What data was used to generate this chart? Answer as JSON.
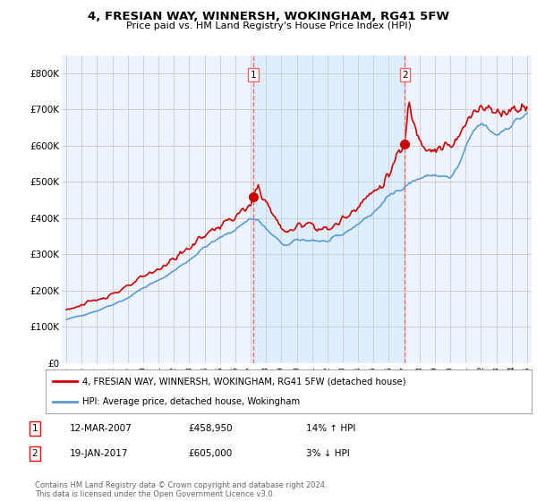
{
  "title": "4, FRESIAN WAY, WINNERSH, WOKINGHAM, RG41 5FW",
  "subtitle": "Price paid vs. HM Land Registry's House Price Index (HPI)",
  "ylabel_ticks": [
    "£0",
    "£100K",
    "£200K",
    "£300K",
    "£400K",
    "£500K",
    "£600K",
    "£700K",
    "£800K"
  ],
  "ylim": [
    0,
    850000
  ],
  "xlim_start": 1994.7,
  "xlim_end": 2025.3,
  "transaction1_x": 2007.19,
  "transaction1_y": 458950,
  "transaction1_label": "1",
  "transaction1_date": "12-MAR-2007",
  "transaction1_price": "£458,950",
  "transaction1_hpi": "14% ↑ HPI",
  "transaction2_x": 2017.05,
  "transaction2_y": 605000,
  "transaction2_label": "2",
  "transaction2_date": "19-JAN-2017",
  "transaction2_price": "£605,000",
  "transaction2_hpi": "3% ↓ HPI",
  "hpi_color": "#5B9BD5",
  "price_color": "#CC0000",
  "dashed_color": "#FF6666",
  "shade_color": "#DDEEFF",
  "background_color": "#ffffff",
  "plot_bg_color": "#EEF4FF",
  "grid_color": "#CCCCCC",
  "legend_label1": "4, FRESIAN WAY, WINNERSH, WOKINGHAM, RG41 5FW (detached house)",
  "legend_label2": "HPI: Average price, detached house, Wokingham",
  "footer": "Contains HM Land Registry data © Crown copyright and database right 2024.\nThis data is licensed under the Open Government Licence v3.0."
}
